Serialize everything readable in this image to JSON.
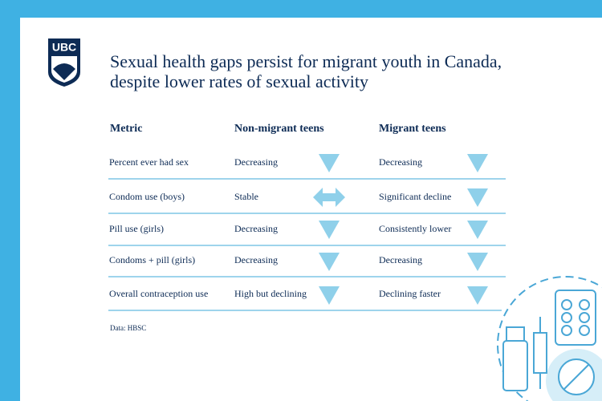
{
  "logo": {
    "text": "UBC"
  },
  "title": {
    "line1": "Sexual health gaps persist for migrant youth in Canada,",
    "line2": "despite lower rates of sexual activity"
  },
  "table": {
    "headers": [
      "Metric",
      "Non-migrant teens",
      "Migrant teens"
    ],
    "rows": [
      [
        "Percent ever had sex",
        "Decreasing",
        "Decreasing"
      ],
      [
        "Condom use (boys)",
        "Stable",
        "Significant decline"
      ],
      [
        "Pill use (girls)",
        "Decreasing",
        "Consistently lower"
      ],
      [
        "Condoms + pill (girls)",
        "Decreasing",
        "Decreasing"
      ],
      [
        "Overall contraception use",
        "High but declining",
        "Declining faster"
      ]
    ]
  },
  "source": "Data: HBSC"
}
